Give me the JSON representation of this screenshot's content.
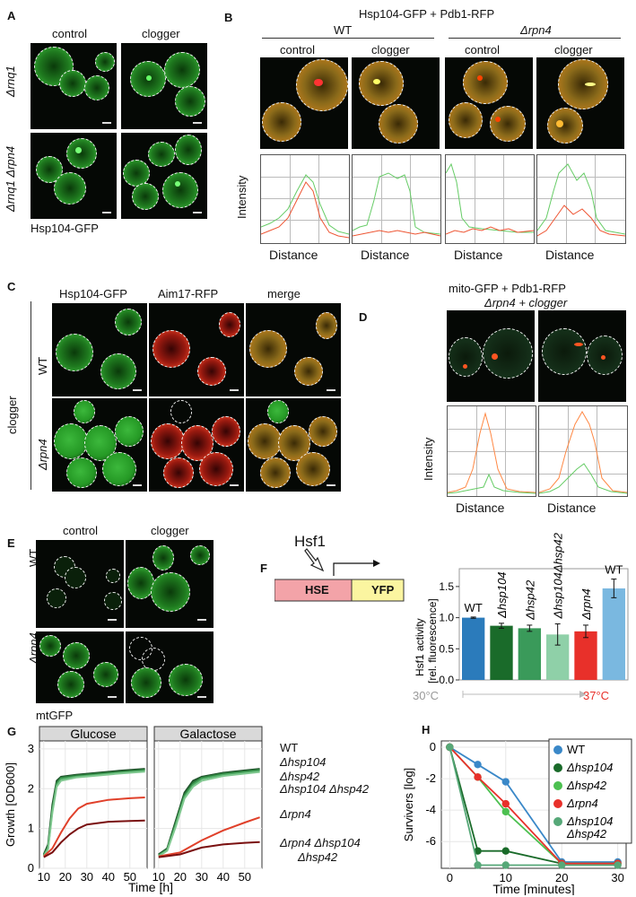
{
  "panels": {
    "A": {
      "label": "A",
      "columns": [
        "control",
        "clogger"
      ],
      "rows": [
        "Δrnq1",
        "Δrnq1 Δrpn4"
      ],
      "caption": "Hsp104-GFP"
    },
    "B": {
      "label": "B",
      "title": "Hsp104-GFP + Pdb1-RFP",
      "groups": [
        "WT",
        "Δrpn4"
      ],
      "columns": [
        "control",
        "clogger",
        "control",
        "clogger"
      ],
      "ylabel": "Intensity",
      "xlabel": "Distance"
    },
    "C": {
      "label": "C",
      "columns": [
        "Hsp104-GFP",
        "Aim17-RFP",
        "merge"
      ],
      "rows": [
        "WT",
        "Δrpn4"
      ],
      "side_label": "clogger"
    },
    "D": {
      "label": "D",
      "title": "mito-GFP + Pdb1-RFP",
      "subtitle": "Δrpn4 + clogger",
      "ylabel": "Intensity",
      "xlabel": "Distance"
    },
    "E": {
      "label": "E",
      "columns": [
        "control",
        "clogger"
      ],
      "rows": [
        "WT",
        "Δrpn4"
      ],
      "caption": "mtGFP"
    },
    "F": {
      "label": "F",
      "hsf1": "Hsf1",
      "hse": "HSE",
      "yfp": "YFP",
      "temp_low": "30°C",
      "temp_high": "37°C"
    },
    "G": {
      "label": "G",
      "legend": [
        "WT",
        "Δhsp104",
        "Δhsp42",
        "Δhsp104 Δhsp42",
        "Δrpn4",
        "Δrpn4 Δhsp104",
        "Δhsp42"
      ]
    },
    "H": {
      "label": "H"
    }
  },
  "chart_data": [
    {
      "type": "bar",
      "panel": "F",
      "categories": [
        "WT",
        "Δhsp104",
        "Δhsp42",
        "Δhsp104Δhsp42",
        "Δrpn4",
        "WT"
      ],
      "values": [
        1.0,
        0.87,
        0.83,
        0.73,
        0.78,
        1.47
      ],
      "errors": [
        0.01,
        0.04,
        0.05,
        0.17,
        0.1,
        0.15
      ],
      "colors": [
        "#2b7bbb",
        "#1a6b2a",
        "#3a9a5a",
        "#8fd0a8",
        "#e8302a",
        "#7ab8e0"
      ],
      "ylabel": "Hsf1 activity",
      "ylabel2": "[rel. fluorescence]",
      "yticks": [
        0.0,
        0.5,
        1.0,
        1.5
      ],
      "ylim": [
        0,
        1.7
      ]
    },
    {
      "type": "line",
      "panel": "G",
      "facets": [
        "Glucose",
        "Galactose"
      ],
      "xlabel": "Time [h]",
      "ylabel": "Growth [OD600]",
      "xticks": [
        10,
        20,
        30,
        40,
        50
      ],
      "yticks": [
        0,
        1,
        2,
        3
      ],
      "xlim": [
        8,
        58
      ],
      "ylim": [
        0,
        3.2
      ],
      "series": [
        {
          "name": "WT",
          "color": "#1f4f2a",
          "glucose": [
            [
              10,
              0.35
            ],
            [
              12,
              0.6
            ],
            [
              14,
              1.6
            ],
            [
              16,
              2.2
            ],
            [
              18,
              2.3
            ],
            [
              25,
              2.35
            ],
            [
              35,
              2.4
            ],
            [
              45,
              2.45
            ],
            [
              57,
              2.5
            ]
          ],
          "galactose": [
            [
              10,
              0.35
            ],
            [
              14,
              0.5
            ],
            [
              18,
              1.2
            ],
            [
              22,
              1.9
            ],
            [
              26,
              2.2
            ],
            [
              30,
              2.3
            ],
            [
              40,
              2.4
            ],
            [
              57,
              2.5
            ]
          ]
        },
        {
          "name": "Δhsp104",
          "color": "#2a7a3a",
          "glucose": [
            [
              10,
              0.33
            ],
            [
              12,
              0.55
            ],
            [
              14,
              1.5
            ],
            [
              16,
              2.15
            ],
            [
              18,
              2.28
            ],
            [
              25,
              2.33
            ],
            [
              35,
              2.38
            ],
            [
              45,
              2.42
            ],
            [
              57,
              2.48
            ]
          ],
          "galactose": [
            [
              10,
              0.33
            ],
            [
              14,
              0.48
            ],
            [
              18,
              1.15
            ],
            [
              22,
              1.85
            ],
            [
              26,
              2.15
            ],
            [
              30,
              2.28
            ],
            [
              40,
              2.38
            ],
            [
              57,
              2.48
            ]
          ]
        },
        {
          "name": "Δhsp42",
          "color": "#4aa860",
          "glucose": [
            [
              10,
              0.32
            ],
            [
              12,
              0.5
            ],
            [
              14,
              1.45
            ],
            [
              16,
              2.1
            ],
            [
              18,
              2.25
            ],
            [
              25,
              2.3
            ],
            [
              35,
              2.35
            ],
            [
              45,
              2.4
            ],
            [
              57,
              2.45
            ]
          ],
          "galactose": [
            [
              10,
              0.32
            ],
            [
              14,
              0.46
            ],
            [
              18,
              1.1
            ],
            [
              22,
              1.8
            ],
            [
              26,
              2.1
            ],
            [
              30,
              2.25
            ],
            [
              40,
              2.35
            ],
            [
              57,
              2.45
            ]
          ]
        },
        {
          "name": "Δhsp104 Δhsp42",
          "color": "#80c890",
          "glucose": [
            [
              10,
              0.3
            ],
            [
              12,
              0.48
            ],
            [
              14,
              1.4
            ],
            [
              16,
              2.05
            ],
            [
              18,
              2.2
            ],
            [
              25,
              2.28
            ],
            [
              35,
              2.33
            ],
            [
              45,
              2.38
            ],
            [
              57,
              2.43
            ]
          ],
          "galactose": [
            [
              10,
              0.3
            ],
            [
              14,
              0.44
            ],
            [
              18,
              1.05
            ],
            [
              22,
              1.75
            ],
            [
              26,
              2.05
            ],
            [
              30,
              2.2
            ],
            [
              40,
              2.32
            ],
            [
              57,
              2.42
            ]
          ]
        },
        {
          "name": "Δrpn4",
          "color": "#e0402a",
          "glucose": [
            [
              10,
              0.3
            ],
            [
              14,
              0.5
            ],
            [
              18,
              0.9
            ],
            [
              22,
              1.25
            ],
            [
              26,
              1.5
            ],
            [
              30,
              1.62
            ],
            [
              40,
              1.72
            ],
            [
              50,
              1.76
            ],
            [
              57,
              1.78
            ]
          ],
          "galactose": [
            [
              10,
              0.3
            ],
            [
              20,
              0.4
            ],
            [
              30,
              0.7
            ],
            [
              40,
              0.95
            ],
            [
              50,
              1.15
            ],
            [
              57,
              1.28
            ]
          ]
        },
        {
          "name": "Δrpn4 Δhsp104 Δhsp42",
          "color": "#7a1010",
          "glucose": [
            [
              10,
              0.28
            ],
            [
              14,
              0.4
            ],
            [
              18,
              0.65
            ],
            [
              22,
              0.85
            ],
            [
              26,
              1.0
            ],
            [
              30,
              1.1
            ],
            [
              40,
              1.17
            ],
            [
              50,
              1.19
            ],
            [
              57,
              1.2
            ]
          ],
          "galactose": [
            [
              10,
              0.28
            ],
            [
              20,
              0.35
            ],
            [
              30,
              0.52
            ],
            [
              40,
              0.6
            ],
            [
              50,
              0.64
            ],
            [
              57,
              0.66
            ]
          ]
        }
      ]
    },
    {
      "type": "line",
      "panel": "H",
      "xlabel": "Time [minutes]",
      "ylabel": "Survivers [log]",
      "xticks": [
        0,
        10,
        20,
        30
      ],
      "yticks": [
        0,
        -2,
        -4,
        -6
      ],
      "xlim": [
        -1.5,
        31.5
      ],
      "ylim": [
        -7.7,
        0.4
      ],
      "series": [
        {
          "name": "WT",
          "color": "#3a88c8",
          "x": [
            0,
            5,
            10,
            20,
            30
          ],
          "y": [
            0,
            -1.1,
            -2.2,
            -7.3,
            -7.3
          ]
        },
        {
          "name": "Δhsp104",
          "color": "#1a6b2a",
          "x": [
            0,
            5,
            10,
            20,
            30
          ],
          "y": [
            0,
            -6.6,
            -6.6,
            -7.4,
            -7.4
          ]
        },
        {
          "name": "Δhsp42",
          "color": "#4cc050",
          "x": [
            0,
            5,
            10,
            20,
            30
          ],
          "y": [
            0,
            -1.9,
            -4.1,
            -7.4,
            -7.4
          ]
        },
        {
          "name": "Δrpn4",
          "color": "#e8302a",
          "x": [
            0,
            5,
            10,
            20,
            30
          ],
          "y": [
            0,
            -1.9,
            -3.6,
            -7.4,
            -7.4
          ]
        },
        {
          "name": "Δhsp104 Δhsp42",
          "color": "#56a878",
          "x": [
            0,
            5,
            10,
            20,
            30
          ],
          "y": [
            0,
            -7.5,
            -7.5,
            -7.5,
            -7.5
          ]
        }
      ]
    }
  ]
}
